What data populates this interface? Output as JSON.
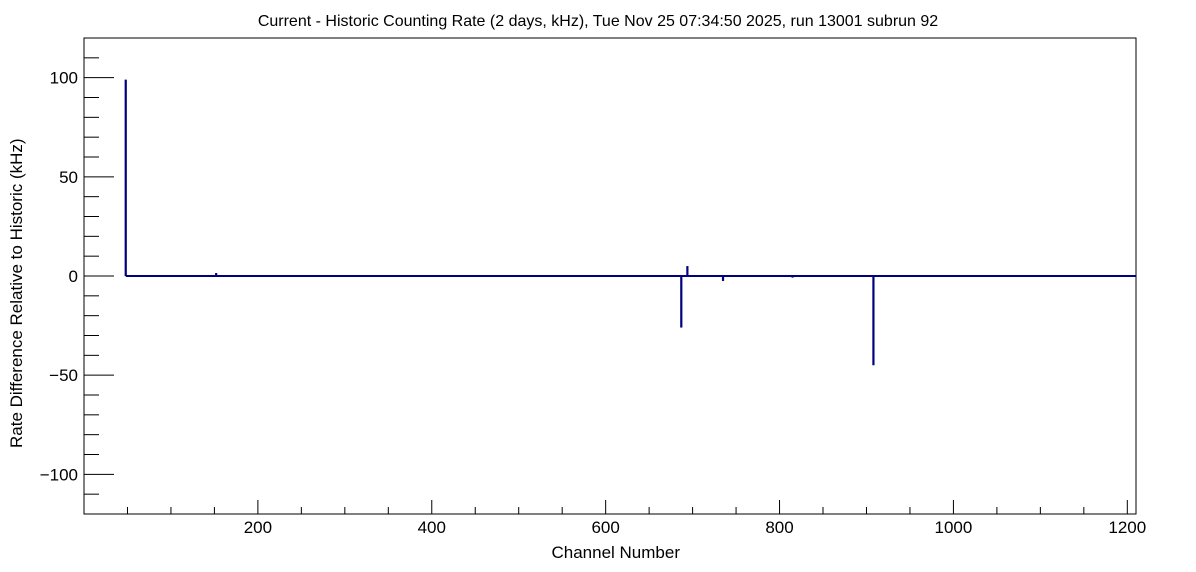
{
  "chart_data": {
    "type": "histogram",
    "title": "Current - Historic Counting Rate (2 days, kHz), Tue Nov 25 07:34:50 2025, run 13001 subrun 92",
    "xlabel": "Channel Number",
    "ylabel": "Rate Difference Relative to Historic (kHz)",
    "xlim": [
      0,
      1210
    ],
    "ylim": [
      -120,
      120
    ],
    "x_ticks": [
      200,
      400,
      600,
      800,
      1000,
      1200
    ],
    "y_ticks": [
      -100,
      -50,
      0,
      50,
      100
    ],
    "line_color": "#000080",
    "grid": false,
    "series": [
      {
        "points": [
          {
            "channel": 48,
            "value": 99
          },
          {
            "channel": 152,
            "value": 1.5
          },
          {
            "channel": 188,
            "value": 0.5
          },
          {
            "channel": 437,
            "value": 0.5
          },
          {
            "channel": 550,
            "value": -0.5
          },
          {
            "channel": 596,
            "value": 0.5
          },
          {
            "channel": 687,
            "value": -26
          },
          {
            "channel": 694,
            "value": 5
          },
          {
            "channel": 735,
            "value": -2.5
          },
          {
            "channel": 765,
            "value": -0.5
          },
          {
            "channel": 781,
            "value": -0.5
          },
          {
            "channel": 815,
            "value": -0.8
          },
          {
            "channel": 908,
            "value": -45
          },
          {
            "channel": 930,
            "value": 0.5
          },
          {
            "channel": 1013,
            "value": 0.5
          },
          {
            "channel": 1092,
            "value": 0.5
          }
        ]
      }
    ]
  }
}
